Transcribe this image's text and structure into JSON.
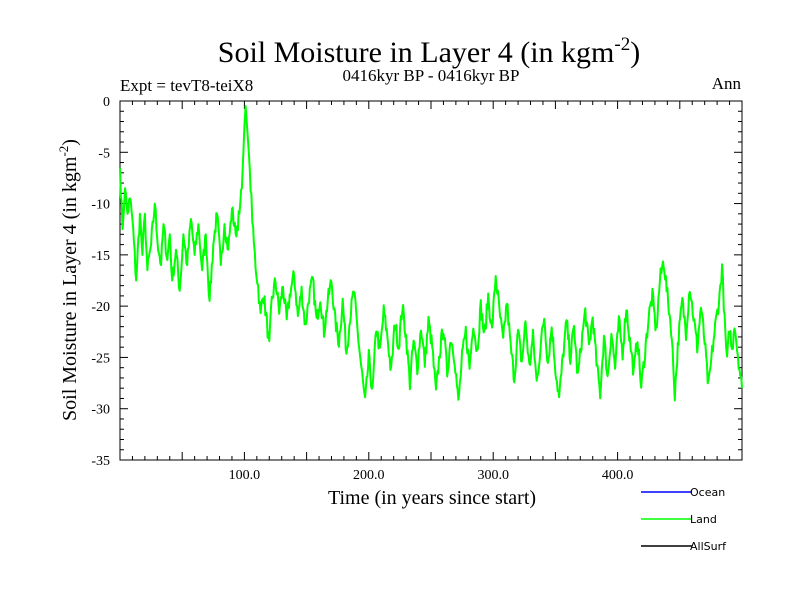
{
  "chart_data": {
    "type": "line",
    "title_main": "Soil Moisture in Layer 4 (in kgm",
    "title_exp": "-2",
    "title_close": ")",
    "subtitle_left": "Expt = tevT8-teiX8",
    "subtitle_center": "0416kyr BP - 0416kyr BP",
    "subtitle_right": "Ann",
    "xlabel": "Time (in years since start)",
    "ylabel_main": "Soil Moisture in Layer 4 (in kgm",
    "ylabel_exp": "-2",
    "ylabel_close": ")",
    "xlim": [
      0,
      500
    ],
    "ylim": [
      -35,
      0
    ],
    "x_ticks": [
      {
        "value": 100,
        "label": "100.0"
      },
      {
        "value": 200,
        "label": "200.0"
      },
      {
        "value": 300,
        "label": "300.0"
      },
      {
        "value": 400,
        "label": "400.0"
      }
    ],
    "y_ticks": [
      {
        "value": 0,
        "label": "0"
      },
      {
        "value": -5,
        "label": "-5"
      },
      {
        "value": -10,
        "label": "-10"
      },
      {
        "value": -15,
        "label": "-15"
      },
      {
        "value": -20,
        "label": "-20"
      },
      {
        "value": -25,
        "label": "-25"
      },
      {
        "value": -30,
        "label": "-30"
      },
      {
        "value": -35,
        "label": "-35"
      }
    ],
    "legend": [
      {
        "name": "Ocean",
        "color": "#0000ff"
      },
      {
        "name": "Land",
        "color": "#00ff00"
      },
      {
        "name": "AllSurf",
        "color": "#000000"
      }
    ],
    "series": [
      {
        "name": "Land",
        "color": "#00ff00",
        "anchors": [
          [
            0,
            -6.5
          ],
          [
            2,
            -12.5
          ],
          [
            4,
            -8.5
          ],
          [
            6,
            -11
          ],
          [
            8,
            -9.5
          ],
          [
            10,
            -11.5
          ],
          [
            13,
            -17.5
          ],
          [
            16,
            -11
          ],
          [
            18,
            -15
          ],
          [
            20,
            -11
          ],
          [
            22,
            -16.5
          ],
          [
            25,
            -14
          ],
          [
            28,
            -10
          ],
          [
            30,
            -13.5
          ],
          [
            33,
            -16
          ],
          [
            35,
            -12
          ],
          [
            38,
            -15.5
          ],
          [
            40,
            -13
          ],
          [
            42,
            -17.5
          ],
          [
            45,
            -14.5
          ],
          [
            48,
            -18.5
          ],
          [
            51,
            -13
          ],
          [
            54,
            -16
          ],
          [
            57,
            -11.5
          ],
          [
            60,
            -15
          ],
          [
            63,
            -12
          ],
          [
            66,
            -16.5
          ],
          [
            69,
            -13
          ],
          [
            72,
            -19.5
          ],
          [
            75,
            -14
          ],
          [
            78,
            -11
          ],
          [
            81,
            -16
          ],
          [
            84,
            -12
          ],
          [
            87,
            -14.5
          ],
          [
            90,
            -10.5
          ],
          [
            93,
            -13
          ],
          [
            96,
            -11
          ],
          [
            98,
            -8.5
          ],
          [
            100,
            -2.5
          ],
          [
            101,
            -0.5
          ],
          [
            103,
            -4
          ],
          [
            105,
            -8
          ],
          [
            107,
            -13
          ],
          [
            109,
            -16
          ],
          [
            111,
            -18
          ],
          [
            113,
            -21
          ],
          [
            115,
            -18.5
          ],
          [
            118,
            -21.5
          ],
          [
            120,
            -24
          ],
          [
            122,
            -19.5
          ],
          [
            125,
            -17.5
          ],
          [
            128,
            -20.5
          ],
          [
            131,
            -18
          ],
          [
            134,
            -21.5
          ],
          [
            137,
            -18.5
          ],
          [
            140,
            -17
          ],
          [
            143,
            -21
          ],
          [
            146,
            -18.5
          ],
          [
            149,
            -22
          ],
          [
            152,
            -19
          ],
          [
            155,
            -17.5
          ],
          [
            158,
            -21.5
          ],
          [
            161,
            -19
          ],
          [
            164,
            -22.5
          ],
          [
            167,
            -19.5
          ],
          [
            170,
            -17.5
          ],
          [
            173,
            -21.5
          ],
          [
            176,
            -23.5
          ],
          [
            179,
            -19.5
          ],
          [
            182,
            -24.5
          ],
          [
            185,
            -21
          ],
          [
            188,
            -18.5
          ],
          [
            191,
            -22.5
          ],
          [
            194,
            -26
          ],
          [
            197,
            -29.5
          ],
          [
            200,
            -25
          ],
          [
            203,
            -28.5
          ],
          [
            206,
            -22
          ],
          [
            209,
            -24.5
          ],
          [
            212,
            -20.5
          ],
          [
            215,
            -23
          ],
          [
            218,
            -26.5
          ],
          [
            221,
            -21.5
          ],
          [
            224,
            -24
          ],
          [
            227,
            -20
          ],
          [
            230,
            -23
          ],
          [
            233,
            -27.5
          ],
          [
            236,
            -23.5
          ],
          [
            239,
            -26
          ],
          [
            242,
            -22
          ],
          [
            245,
            -25.5
          ],
          [
            248,
            -21.5
          ],
          [
            251,
            -24
          ],
          [
            254,
            -28.5
          ],
          [
            257,
            -24.5
          ],
          [
            260,
            -22
          ],
          [
            263,
            -26.5
          ],
          [
            266,
            -23
          ],
          [
            269,
            -25
          ],
          [
            272,
            -29.5
          ],
          [
            275,
            -25
          ],
          [
            278,
            -22.5
          ],
          [
            281,
            -26
          ],
          [
            284,
            -21.5
          ],
          [
            287,
            -24.5
          ],
          [
            290,
            -20
          ],
          [
            293,
            -23
          ],
          [
            296,
            -19
          ],
          [
            299,
            -22.5
          ],
          [
            302,
            -17
          ],
          [
            305,
            -20.5
          ],
          [
            308,
            -23.5
          ],
          [
            311,
            -19.5
          ],
          [
            314,
            -24
          ],
          [
            317,
            -27
          ],
          [
            320,
            -22.5
          ],
          [
            323,
            -25.5
          ],
          [
            326,
            -21.5
          ],
          [
            329,
            -26
          ],
          [
            332,
            -23
          ],
          [
            335,
            -27.5
          ],
          [
            338,
            -24
          ],
          [
            341,
            -21
          ],
          [
            344,
            -25.5
          ],
          [
            347,
            -22
          ],
          [
            350,
            -26
          ],
          [
            353,
            -29
          ],
          [
            356,
            -25
          ],
          [
            359,
            -21.5
          ],
          [
            362,
            -25
          ],
          [
            365,
            -22
          ],
          [
            368,
            -27
          ],
          [
            371,
            -23.5
          ],
          [
            374,
            -20.5
          ],
          [
            377,
            -24
          ],
          [
            380,
            -21
          ],
          [
            383,
            -25.5
          ],
          [
            386,
            -28.5
          ],
          [
            389,
            -23
          ],
          [
            392,
            -27
          ],
          [
            395,
            -22.5
          ],
          [
            398,
            -26
          ],
          [
            401,
            -21.5
          ],
          [
            404,
            -24.5
          ],
          [
            407,
            -20
          ],
          [
            410,
            -23.5
          ],
          [
            413,
            -26.5
          ],
          [
            416,
            -23
          ],
          [
            419,
            -28
          ],
          [
            422,
            -24.5
          ],
          [
            425,
            -21
          ],
          [
            428,
            -19
          ],
          [
            431,
            -22.5
          ],
          [
            434,
            -17.5
          ],
          [
            437,
            -15.5
          ],
          [
            440,
            -19
          ],
          [
            443,
            -22
          ],
          [
            446,
            -28.5
          ],
          [
            449,
            -23
          ],
          [
            452,
            -19.5
          ],
          [
            455,
            -22.5
          ],
          [
            458,
            -18
          ],
          [
            461,
            -21
          ],
          [
            464,
            -24
          ],
          [
            467,
            -20
          ],
          [
            470,
            -23.5
          ],
          [
            473,
            -28
          ],
          [
            476,
            -24.5
          ],
          [
            479,
            -21.5
          ],
          [
            482,
            -19
          ],
          [
            484,
            -16
          ],
          [
            486,
            -21.5
          ],
          [
            488,
            -25.5
          ],
          [
            490,
            -22
          ],
          [
            492,
            -24.5
          ],
          [
            494,
            -21.5
          ],
          [
            496,
            -24
          ],
          [
            498,
            -26
          ],
          [
            500,
            -28
          ]
        ]
      },
      {
        "name": "Ocean",
        "color": "#0000ff",
        "anchors": []
      },
      {
        "name": "AllSurf",
        "color": "#000000",
        "anchors": []
      }
    ]
  }
}
